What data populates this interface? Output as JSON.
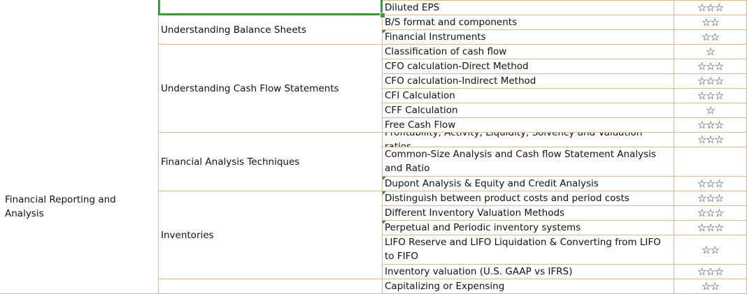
{
  "column_a": {
    "label": "Financial Reporting and Analysis"
  },
  "groups": [
    {
      "label": "",
      "rows": [
        0
      ]
    },
    {
      "label": "Understanding Balance Sheets",
      "rows": [
        1,
        2
      ]
    },
    {
      "label": "Understanding Cash Flow Statements",
      "rows": [
        3,
        4,
        5,
        6,
        7,
        8
      ]
    },
    {
      "label": "Financial Analysis Techniques",
      "rows": [
        9,
        10,
        11
      ]
    },
    {
      "label": "Inventories",
      "rows": [
        12,
        13,
        14,
        15,
        16
      ]
    },
    {
      "label": "",
      "rows": [
        17
      ]
    }
  ],
  "rows": [
    {
      "topic": "Diluted EPS",
      "stars": "☆☆☆",
      "lines": 1,
      "comment": false
    },
    {
      "topic": "B/S format and components",
      "stars": "☆☆",
      "lines": 1,
      "comment": false
    },
    {
      "topic": "Financial Instruments",
      "stars": "☆☆",
      "lines": 1,
      "comment": true
    },
    {
      "topic": "Classification of cash flow",
      "stars": "☆",
      "lines": 1,
      "comment": false
    },
    {
      "topic": "CFO calculation-Direct Method",
      "stars": "☆☆☆",
      "lines": 1,
      "comment": false
    },
    {
      "topic": "CFO calculation-Indirect Method",
      "stars": "☆☆☆",
      "lines": 1,
      "comment": false
    },
    {
      "topic": "CFI Calculation",
      "stars": "☆☆☆",
      "lines": 1,
      "comment": false
    },
    {
      "topic": "CFF Calculation",
      "stars": "☆",
      "lines": 1,
      "comment": false
    },
    {
      "topic": "Free Cash Flow",
      "stars": "☆☆☆",
      "lines": 1,
      "comment": false
    },
    {
      "topic": "Profitability, Activity, Liquidity, Solvency and Valuation ratios",
      "stars": "☆☆☆",
      "lines": 1,
      "comment": false
    },
    {
      "topic": "Common-Size Analysis and Cash flow Statement Analysis and Ratio",
      "stars": "",
      "lines": 2,
      "comment": false
    },
    {
      "topic": "Dupont Analysis & Equity and Credit Analysis",
      "stars": "☆☆☆",
      "lines": 1,
      "comment": true
    },
    {
      "topic": "Distinguish between product costs and period costs",
      "stars": "☆☆☆",
      "lines": 1,
      "comment": true
    },
    {
      "topic": "Different Inventory Valuation Methods",
      "stars": "☆☆☆",
      "lines": 1,
      "comment": false
    },
    {
      "topic": "Perpetual and Periodic inventory systems",
      "stars": "☆☆☆",
      "lines": 1,
      "comment": true
    },
    {
      "topic": "LIFO Reserve and LIFO Liquidation & Converting from LIFO to FIFO",
      "stars": "☆☆",
      "lines": 2,
      "comment": false
    },
    {
      "topic": "Inventory valuation (U.S. GAAP vs IFRS)",
      "stars": "☆☆☆",
      "lines": 1,
      "comment": false
    },
    {
      "topic": "Capitalizing or Expensing",
      "stars": "☆☆",
      "lines": 1,
      "comment": false
    }
  ],
  "colors": {
    "grid": "#dcb88a",
    "selection": "#3f9a3f",
    "comment_marker": "#2e8b2e"
  }
}
